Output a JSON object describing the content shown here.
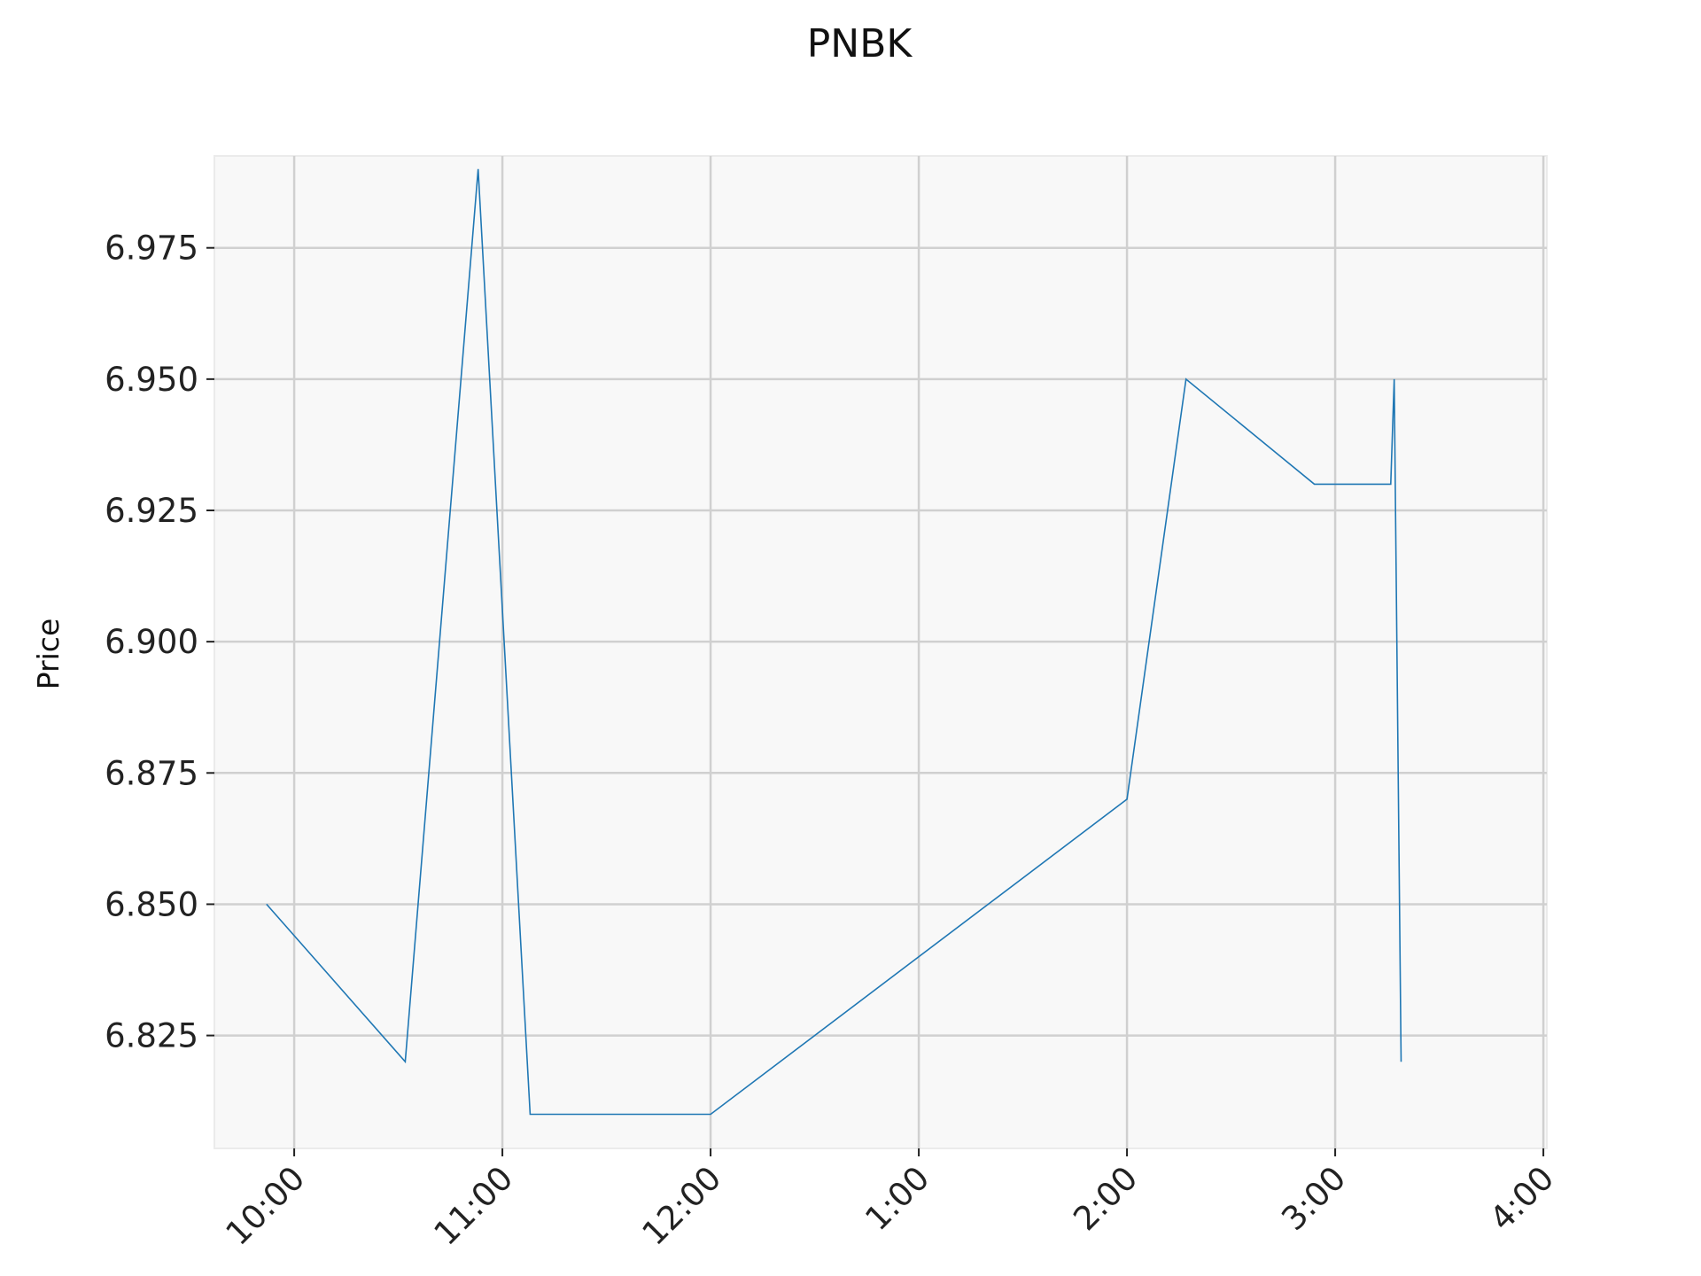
{
  "chart_data": {
    "type": "line",
    "title": "PNBK",
    "xlabel": "",
    "ylabel": "Price",
    "x_tick_labels": [
      "10:00",
      "11:00",
      "12:00",
      "1:00",
      "2:00",
      "3:00",
      "4:00"
    ],
    "y_tick_labels": [
      "6.825",
      "6.850",
      "6.875",
      "6.900",
      "6.925",
      "6.950",
      "6.975"
    ],
    "xlim": [
      "09:37",
      "16:01"
    ],
    "ylim": [
      6.8035,
      6.9925
    ],
    "grid": true,
    "series": [
      {
        "color": "#1f77b4",
        "x": [
          "09:52",
          "10:32",
          "10:53",
          "11:08",
          "12:00",
          "14:00",
          "14:17",
          "14:54",
          "15:16",
          "15:17",
          "15:19"
        ],
        "y": [
          6.85,
          6.82,
          6.99,
          6.81,
          6.81,
          6.87,
          6.95,
          6.93,
          6.93,
          6.95,
          6.82
        ]
      }
    ],
    "colors": {
      "plot_background": "#f8f8f8",
      "grid": "#d0d0d0",
      "line": "#1f77b4"
    }
  }
}
